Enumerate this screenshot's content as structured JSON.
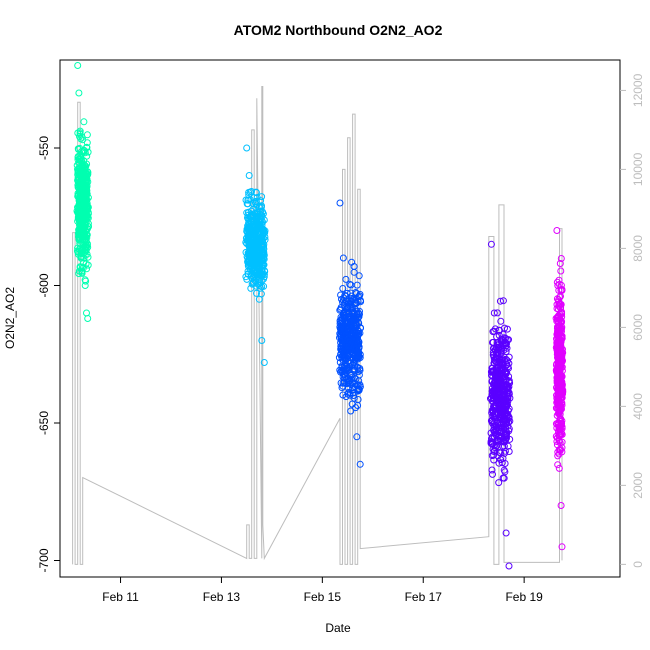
{
  "chart_data": {
    "type": "scatter",
    "title": "ATOM2 Northbound O2N2_AO2",
    "xlabel": "Date",
    "ylabel": "O2N2_AO2",
    "x_ticks": [
      "Feb 11",
      "Feb 13",
      "Feb 15",
      "Feb 17",
      "Feb 19"
    ],
    "x_tick_days": [
      11,
      13,
      15,
      17,
      19
    ],
    "xlim_days": [
      9.8,
      20.9
    ],
    "ylim": [
      -706,
      -518
    ],
    "y_ticks": [
      -550,
      -600,
      -650,
      -700
    ],
    "y2_ticks": [
      0,
      2000,
      4000,
      6000,
      8000,
      10000,
      12000
    ],
    "y2lim": [
      -320,
      12770
    ],
    "secondary_color": "#bdbdbd",
    "series": [
      {
        "color": "#00ffb0",
        "day_range": [
          10.15,
          10.35
        ],
        "values": [
          -520,
          -530,
          -545,
          -560,
          -575,
          -590,
          -600,
          -610,
          -612
        ],
        "center": -570,
        "spread": 32
      },
      {
        "color": "#00c0ff",
        "day_range": [
          13.5,
          13.85
        ],
        "values": [
          -550,
          -560,
          -575,
          -585,
          -595,
          -605,
          -620,
          -628
        ],
        "center": -585,
        "spread": 22
      },
      {
        "color": "#0050ff",
        "day_range": [
          15.35,
          15.75
        ],
        "values": [
          -570,
          -590,
          -610,
          -625,
          -640,
          -655,
          -665
        ],
        "center": -620,
        "spread": 28
      },
      {
        "color": "#5a00ff",
        "day_range": [
          18.35,
          18.7
        ],
        "values": [
          -585,
          -610,
          -630,
          -650,
          -670,
          -690,
          -702
        ],
        "center": -640,
        "spread": 35
      },
      {
        "color": "#e000ff",
        "day_range": [
          19.65,
          19.75
        ],
        "values": [
          -580,
          -600,
          -620,
          -640,
          -660,
          -680,
          -695
        ],
        "center": -630,
        "spread": 40
      }
    ],
    "secondary_line": [
      [
        10.05,
        0
      ],
      [
        10.05,
        8400
      ],
      [
        10.1,
        8400
      ],
      [
        10.1,
        0
      ],
      [
        10.15,
        0
      ],
      [
        10.15,
        11700
      ],
      [
        10.2,
        11700
      ],
      [
        10.2,
        0
      ],
      [
        10.25,
        0
      ],
      [
        10.25,
        2200
      ],
      [
        13.5,
        150
      ],
      [
        13.5,
        1000
      ],
      [
        13.55,
        1000
      ],
      [
        13.55,
        150
      ],
      [
        13.6,
        150
      ],
      [
        13.6,
        11000
      ],
      [
        13.65,
        11000
      ],
      [
        13.65,
        150
      ],
      [
        13.7,
        150
      ],
      [
        13.7,
        11800
      ],
      [
        13.8,
        150
      ],
      [
        13.8,
        12100
      ],
      [
        13.82,
        12100
      ],
      [
        13.82,
        1000
      ],
      [
        13.85,
        150
      ],
      [
        15.35,
        3700
      ],
      [
        15.35,
        0
      ],
      [
        15.4,
        0
      ],
      [
        15.4,
        10000
      ],
      [
        15.45,
        10000
      ],
      [
        15.45,
        0
      ],
      [
        15.5,
        0
      ],
      [
        15.5,
        10800
      ],
      [
        15.55,
        10800
      ],
      [
        15.55,
        0
      ],
      [
        15.6,
        0
      ],
      [
        15.6,
        11400
      ],
      [
        15.65,
        11400
      ],
      [
        15.65,
        0
      ],
      [
        15.7,
        0
      ],
      [
        15.7,
        9500
      ],
      [
        15.75,
        9500
      ],
      [
        15.75,
        400
      ],
      [
        18.3,
        700
      ],
      [
        18.3,
        8300
      ],
      [
        18.4,
        8300
      ],
      [
        18.4,
        0
      ],
      [
        18.5,
        0
      ],
      [
        18.5,
        9100
      ],
      [
        18.6,
        9100
      ],
      [
        18.6,
        50
      ],
      [
        19.7,
        50
      ],
      [
        19.7,
        8500
      ],
      [
        19.75,
        8500
      ],
      [
        19.75,
        100
      ]
    ]
  }
}
